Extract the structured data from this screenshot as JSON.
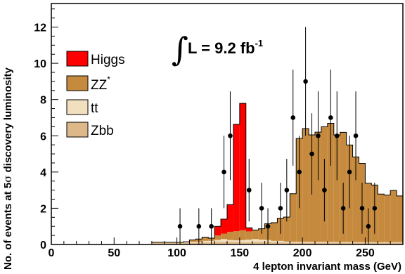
{
  "chart_data": {
    "type": "bar",
    "title": "",
    "xlabel": "4 lepton invariant mass (GeV)",
    "ylabel_parts": [
      "No. of events at 5",
      "σ",
      " discovery luminosity"
    ],
    "xlim": [
      0,
      280
    ],
    "ylim": [
      0,
      13.3
    ],
    "x_ticks": [
      0,
      50,
      100,
      150,
      200,
      250
    ],
    "y_ticks": [
      0,
      2,
      4,
      6,
      8,
      10,
      12
    ],
    "bin_width": 5,
    "bin_start": 80,
    "stack_order": [
      "Zbb",
      "tt",
      "ZZ*",
      "Higgs"
    ],
    "series": [
      {
        "name": "Zbb",
        "color": "#ddb888",
        "values": [
          0.1,
          0.1,
          0.1,
          0.1,
          0.1,
          0.1,
          0.1,
          0.1,
          0.12,
          0.12,
          0.15,
          0.15,
          0.15,
          0.15,
          0.12,
          0.12,
          0.15,
          0.15,
          0.15,
          0.12,
          0.12,
          0.1,
          0.1,
          0.1,
          0.1,
          0.1,
          0.1,
          0.1,
          0.1,
          0.1,
          0.1,
          0.1,
          0.1,
          0.1,
          0.1,
          0.1,
          0.1,
          0.1,
          0.1,
          0.1
        ]
      },
      {
        "name": "tt",
        "color": "#f1dfbe",
        "values": [
          0.02,
          0.02,
          0.02,
          0.02,
          0.02,
          0.03,
          0.05,
          0.05,
          0.08,
          0.08,
          0.1,
          0.15,
          0.1,
          0.08,
          0.12,
          0.15,
          0.15,
          0.12,
          0.1,
          0.08,
          0.08,
          0.06,
          0.05,
          0.05,
          0.05,
          0.05,
          0.05,
          0.05,
          0.04,
          0.04,
          0.04,
          0.04,
          0.03,
          0.03,
          0.03,
          0.03,
          0.03,
          0.03,
          0.03,
          0.03
        ]
      },
      {
        "name": "ZZ*",
        "label_base": "ZZ",
        "label_sup": "*",
        "color": "#c68a3e",
        "values": [
          0.0,
          0.0,
          0.0,
          0.0,
          0.0,
          0.02,
          0.1,
          0.15,
          0.2,
          0.15,
          0.25,
          0.3,
          0.45,
          0.5,
          0.55,
          0.45,
          0.5,
          0.6,
          0.9,
          1.0,
          1.25,
          1.35,
          2.65,
          5.7,
          6.25,
          5.9,
          6.05,
          6.35,
          6.55,
          5.9,
          6.05,
          5.35,
          4.7,
          4.35,
          3.25,
          3.15,
          2.65,
          2.6,
          2.85,
          2.55
        ]
      },
      {
        "name": "Higgs",
        "color": "#ff0000",
        "values": [
          0,
          0,
          0,
          0,
          0,
          0,
          0,
          0,
          0,
          0,
          0.5,
          0.8,
          1.5,
          5.9,
          7.0,
          0.2,
          0,
          0,
          0,
          0,
          0,
          0,
          0,
          0,
          0,
          0,
          0,
          0,
          0,
          0,
          0,
          0,
          0,
          0,
          0,
          0,
          0,
          0,
          0,
          0
        ]
      }
    ],
    "data_points": {
      "name": "data",
      "x": [
        102.5,
        117.5,
        127.5,
        137.5,
        142.5,
        157.5,
        167.5,
        172.5,
        182.5,
        187.5,
        192.5,
        197.5,
        202.5,
        207.5,
        212.5,
        217.5,
        222.5,
        227.5,
        232.5,
        237.5,
        242.5,
        247.5,
        252.5,
        257.5
      ],
      "y": [
        1,
        1,
        1,
        4,
        6,
        3,
        2,
        1,
        2,
        3,
        7,
        4,
        9,
        5,
        6,
        3,
        7,
        6,
        2,
        4,
        6,
        2,
        1,
        2
      ],
      "err": [
        1,
        1,
        1,
        2,
        2.45,
        1.73,
        1.41,
        1,
        1.41,
        1.73,
        2.65,
        2,
        3,
        2.24,
        2.45,
        1.73,
        2.65,
        2.45,
        1.41,
        2,
        2.45,
        1.41,
        1,
        1.41
      ]
    },
    "legend": {
      "placement": "upper-left",
      "entries": [
        "Higgs",
        "ZZ*",
        "tt",
        "Zbb"
      ]
    },
    "annotation": {
      "integral": "∫",
      "text": "L = 9.2 fb",
      "sup": "-1"
    }
  }
}
